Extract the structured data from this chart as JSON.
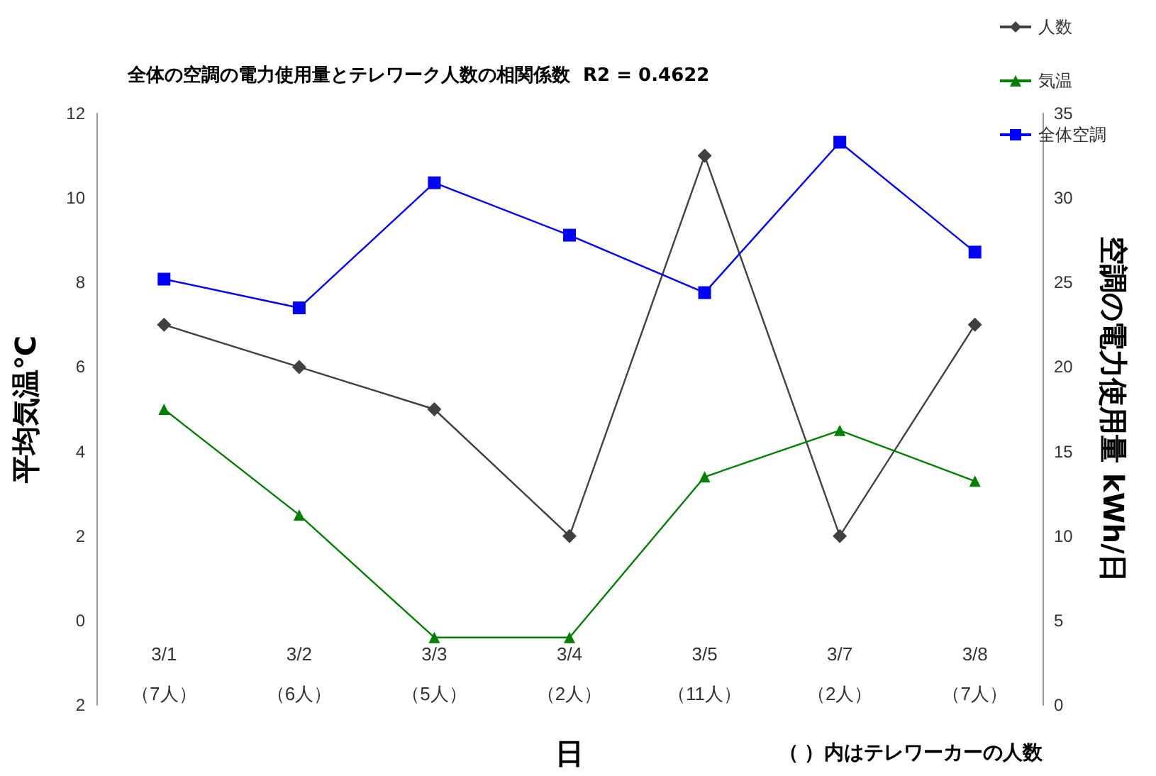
{
  "chart_data": {
    "type": "line",
    "title": "全体の空調の電力使用量とテレワーク人数の相関係数  R2 = 0.4622",
    "xlabel": "日",
    "ylabel": "平均気温℃",
    "y2label": "空調の電力使用量 kWh/日",
    "annotations": [
      "（ ）内はテレワーカーの人数"
    ],
    "categories": [
      "3/1\n（7人）",
      "3/2\n（6人）",
      "3/3\n（5人）",
      "3/4\n（2人）",
      "3/5\n（11人）",
      "3/7\n（2人）",
      "3/8\n（7人）"
    ],
    "series": [
      {
        "name": "人数",
        "color": "#404040",
        "marker": "diamond",
        "values": [
          7,
          6,
          5,
          2,
          11,
          2,
          7
        ]
      },
      {
        "name": "気温",
        "color": "#008000",
        "marker": "triangle",
        "values": [
          5.0,
          2.5,
          -0.4,
          -0.4,
          3.4,
          4.5,
          3.3
        ]
      },
      {
        "name": "全体空調",
        "color": "#0000ff",
        "marker": "square",
        "axis": "y2",
        "values": [
          25.2,
          23.5,
          30.9,
          27.8,
          24.4,
          33.3,
          26.8
        ]
      }
    ],
    "ylim": [
      -2,
      12
    ],
    "yticks": [
      {
        "value": -2,
        "label": "2"
      },
      0,
      2,
      4,
      6,
      8,
      10,
      12
    ],
    "y2lim": [
      0,
      35
    ],
    "y2ticks": [
      0,
      5,
      10,
      15,
      20,
      25,
      30,
      35
    ],
    "grid": false,
    "legend": "top right"
  }
}
